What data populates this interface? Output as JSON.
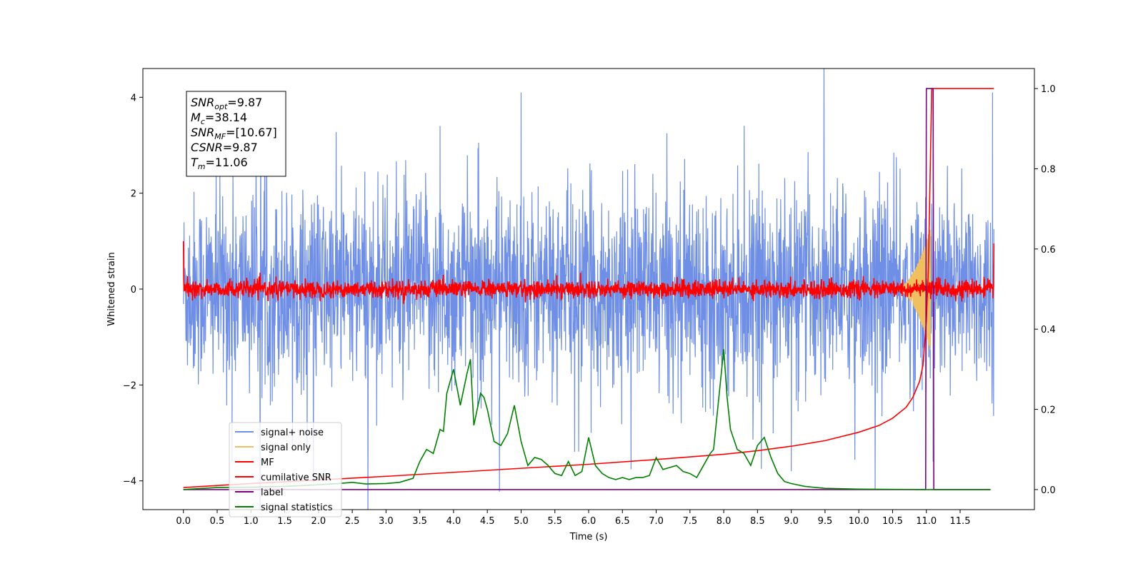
{
  "chart_data": {
    "type": "line",
    "title": "",
    "xlabel": "Time (s)",
    "ylabel": "Whitened strain",
    "y2label": "",
    "xlim": [
      -0.6,
      12.6
    ],
    "ylim": [
      -4.6,
      4.6
    ],
    "y2lim": [
      -0.05,
      1.05
    ],
    "xticks": [
      0.0,
      0.5,
      1.0,
      1.5,
      2.0,
      2.5,
      3.0,
      3.5,
      4.0,
      4.5,
      5.0,
      5.5,
      6.0,
      6.5,
      7.0,
      7.5,
      8.0,
      8.5,
      9.0,
      9.5,
      10.0,
      10.5,
      11.0,
      11.5
    ],
    "xtick_labels": [
      "0.0",
      "0.5",
      "1.0",
      "1.5",
      "2.0",
      "2.5",
      "3.0",
      "3.5",
      "4.0",
      "4.5",
      "5.0",
      "5.5",
      "6.0",
      "6.5",
      "7.0",
      "7.5",
      "8.0",
      "8.5",
      "9.0",
      "9.5",
      "10.0",
      "10.5",
      "11.0",
      "11.5"
    ],
    "yticks": [
      -4,
      -2,
      0,
      2,
      4
    ],
    "ytick_labels": [
      "−4",
      "−2",
      "0",
      "2",
      "4"
    ],
    "y2ticks": [
      0.0,
      0.2,
      0.4,
      0.6,
      0.8,
      1.0
    ],
    "y2tick_labels": [
      "0.0",
      "0.2",
      "0.4",
      "0.6",
      "0.8",
      "1.0"
    ],
    "grid": false,
    "legend_placement": "lower-left",
    "annotation": {
      "lines": [
        {
          "sym": "SNR",
          "sub": "opt",
          "val": "=9.87"
        },
        {
          "sym": "M",
          "sub": "c",
          "val": "=38.14"
        },
        {
          "sym": "SNR",
          "sub": "MF",
          "val": "=[10.67]"
        },
        {
          "sym": "CSNR",
          "sub": "",
          "val": "=9.87"
        },
        {
          "sym": "T",
          "sub": "m",
          "val": "=11.06"
        }
      ]
    },
    "series": [
      {
        "name": "signal+ noise",
        "color": "#6f8fe6",
        "axis": "left",
        "style": "noise",
        "x_range": [
          0.0,
          12.0
        ],
        "amplitude_sigma": 1.0,
        "peaks": [
          [
            0.72,
            -3.6
          ],
          [
            3.8,
            3.4
          ],
          [
            5.0,
            4.1
          ],
          [
            9.0,
            -3.8
          ],
          [
            11.1,
            -3.6
          ],
          [
            11.98,
            4.1
          ]
        ]
      },
      {
        "name": "signal only",
        "color": "#f0c060",
        "axis": "left",
        "style": "chirp",
        "x_range": [
          10.5,
          11.06
        ],
        "peak_amplitude": 1.3
      },
      {
        "name": "MF",
        "color": "#ff0000",
        "axis": "left",
        "style": "noise",
        "x_range": [
          0.0,
          12.0
        ],
        "amplitude_sigma": 0.09
      },
      {
        "name": "cumilative SNR",
        "color": "#ff0000",
        "axis": "right",
        "x": [
          0.0,
          1.0,
          2.0,
          3.0,
          4.0,
          5.0,
          6.0,
          7.0,
          8.0,
          8.5,
          9.0,
          9.5,
          10.0,
          10.3,
          10.5,
          10.7,
          10.8,
          10.9,
          10.95,
          11.0,
          11.03,
          11.06,
          11.08,
          12.0
        ],
        "y": [
          0.005,
          0.015,
          0.024,
          0.033,
          0.043,
          0.053,
          0.063,
          0.075,
          0.088,
          0.097,
          0.108,
          0.122,
          0.143,
          0.16,
          0.178,
          0.205,
          0.23,
          0.27,
          0.31,
          0.42,
          0.55,
          0.82,
          1.0,
          1.0
        ]
      },
      {
        "name": "label",
        "color": "#800080",
        "axis": "right",
        "x": [
          0.0,
          10.99,
          11.0,
          11.1,
          11.11,
          11.95
        ],
        "y": [
          0.0,
          0.0,
          1.0,
          1.0,
          0.0,
          0.0
        ]
      },
      {
        "name": "signal statistics",
        "color": "#008000",
        "axis": "right",
        "x": [
          0.0,
          0.5,
          1.0,
          1.5,
          2.0,
          2.3,
          2.5,
          2.7,
          3.0,
          3.2,
          3.4,
          3.5,
          3.6,
          3.7,
          3.8,
          3.85,
          3.9,
          4.0,
          4.1,
          4.2,
          4.25,
          4.3,
          4.4,
          4.45,
          4.5,
          4.6,
          4.7,
          4.8,
          4.9,
          5.0,
          5.1,
          5.2,
          5.3,
          5.4,
          5.5,
          5.6,
          5.7,
          5.8,
          5.9,
          6.0,
          6.1,
          6.2,
          6.3,
          6.4,
          6.5,
          6.6,
          6.7,
          6.8,
          6.9,
          7.0,
          7.1,
          7.2,
          7.3,
          7.4,
          7.5,
          7.6,
          7.7,
          7.8,
          7.85,
          8.0,
          8.05,
          8.1,
          8.2,
          8.3,
          8.4,
          8.5,
          8.6,
          8.7,
          8.8,
          8.9,
          9.0,
          9.2,
          9.5,
          10.0,
          11.0,
          11.95
        ],
        "y": [
          0.0,
          0.005,
          0.006,
          0.008,
          0.012,
          0.015,
          0.018,
          0.014,
          0.015,
          0.018,
          0.028,
          0.07,
          0.1,
          0.09,
          0.15,
          0.145,
          0.24,
          0.3,
          0.21,
          0.29,
          0.325,
          0.16,
          0.24,
          0.23,
          0.2,
          0.12,
          0.11,
          0.14,
          0.21,
          0.12,
          0.06,
          0.08,
          0.075,
          0.06,
          0.04,
          0.035,
          0.07,
          0.035,
          0.045,
          0.13,
          0.06,
          0.04,
          0.03,
          0.025,
          0.03,
          0.025,
          0.03,
          0.03,
          0.035,
          0.08,
          0.05,
          0.055,
          0.06,
          0.045,
          0.04,
          0.03,
          0.06,
          0.09,
          0.1,
          0.35,
          0.23,
          0.15,
          0.1,
          0.09,
          0.06,
          0.11,
          0.13,
          0.08,
          0.04,
          0.02,
          0.015,
          0.008,
          0.003,
          0.001,
          0.0,
          0.0
        ]
      }
    ]
  }
}
